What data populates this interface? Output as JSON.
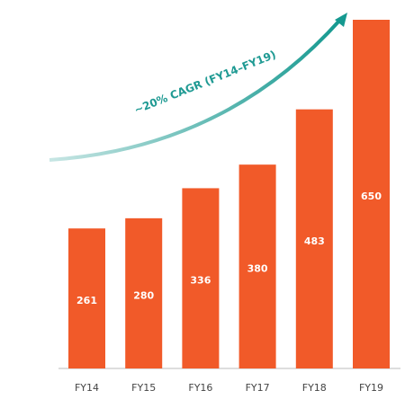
{
  "chart_data": {
    "type": "bar",
    "categories": [
      "FY14",
      "FY15",
      "FY16",
      "FY17",
      "FY18",
      "FY19"
    ],
    "values": [
      261,
      280,
      336,
      380,
      483,
      650
    ],
    "color": "#f15a29",
    "annotation": "~20% CAGR (FY14–FY19)"
  }
}
